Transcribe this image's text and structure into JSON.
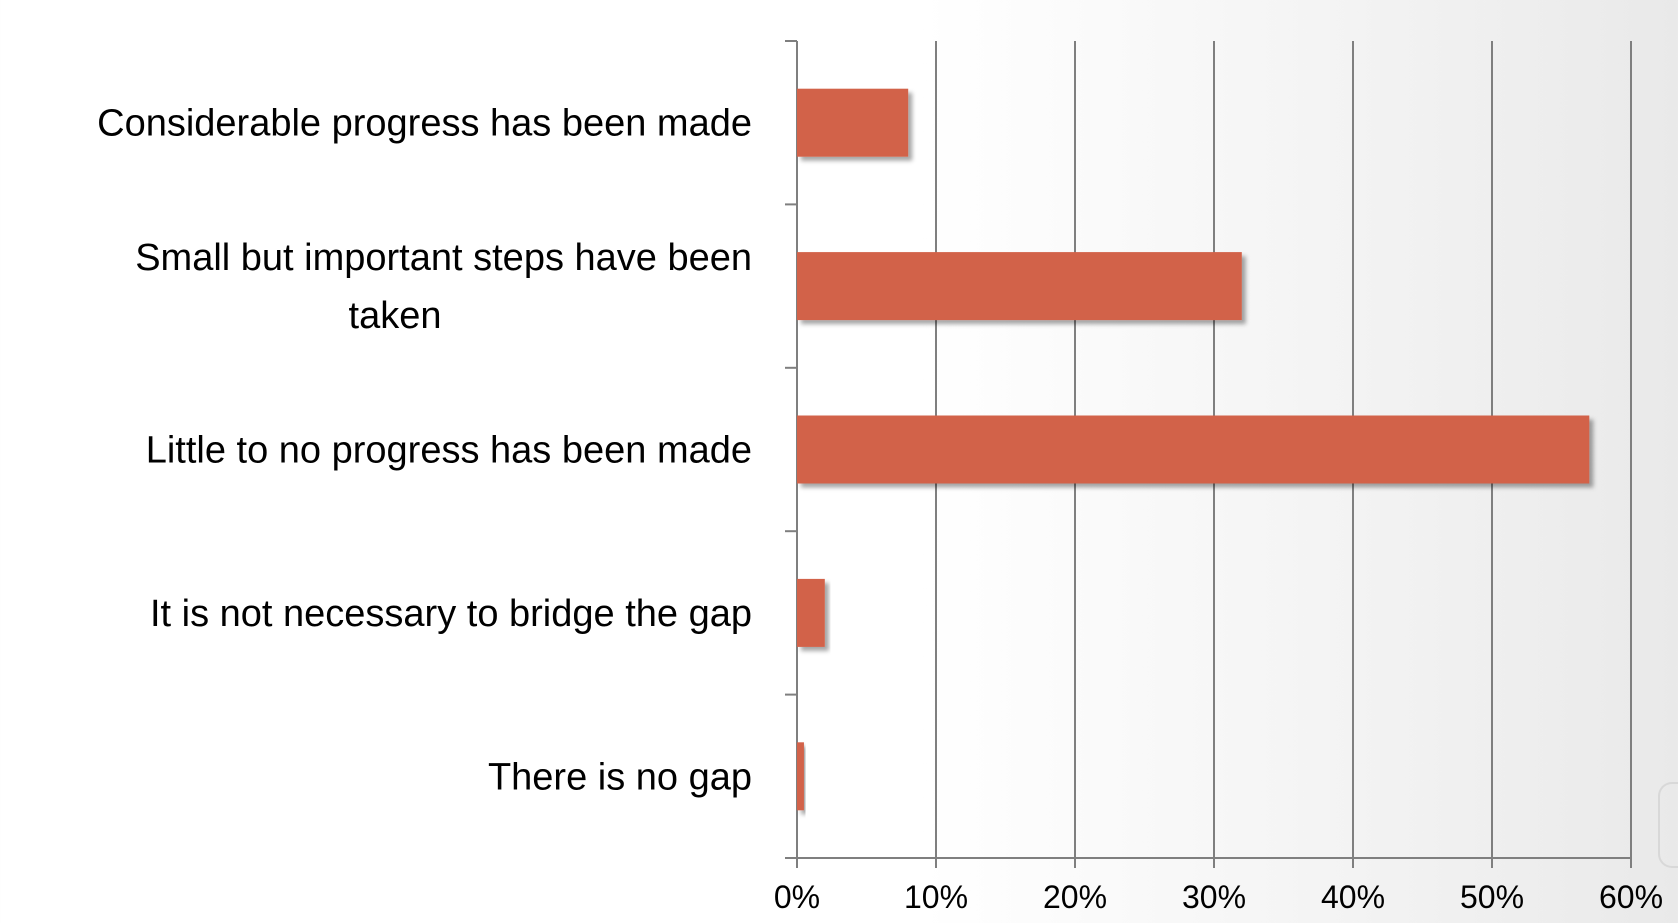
{
  "chart_data": {
    "type": "bar",
    "orientation": "horizontal",
    "categories": [
      "Considerable progress has been made",
      "Small but important steps have been taken",
      "Little to no progress has been made",
      "It is not necessary to bridge the gap",
      "There is no gap"
    ],
    "category_lines": [
      [
        "Considerable progress has been made"
      ],
      [
        "Small but important steps have been",
        "taken"
      ],
      [
        "Little to no progress has been made"
      ],
      [
        "It is not necessary to bridge the gap"
      ],
      [
        "There is no gap"
      ]
    ],
    "values": [
      8,
      32,
      57,
      2,
      0.5
    ],
    "xlim": [
      0,
      60
    ],
    "xticks": [
      0,
      10,
      20,
      30,
      40,
      50,
      60
    ],
    "xtick_labels": [
      "0%",
      "10%",
      "20%",
      "30%",
      "40%",
      "50%",
      "60%"
    ],
    "grid": "vertical",
    "bar_color": "#D2624A",
    "gridline_color": "#7f7f7f"
  }
}
